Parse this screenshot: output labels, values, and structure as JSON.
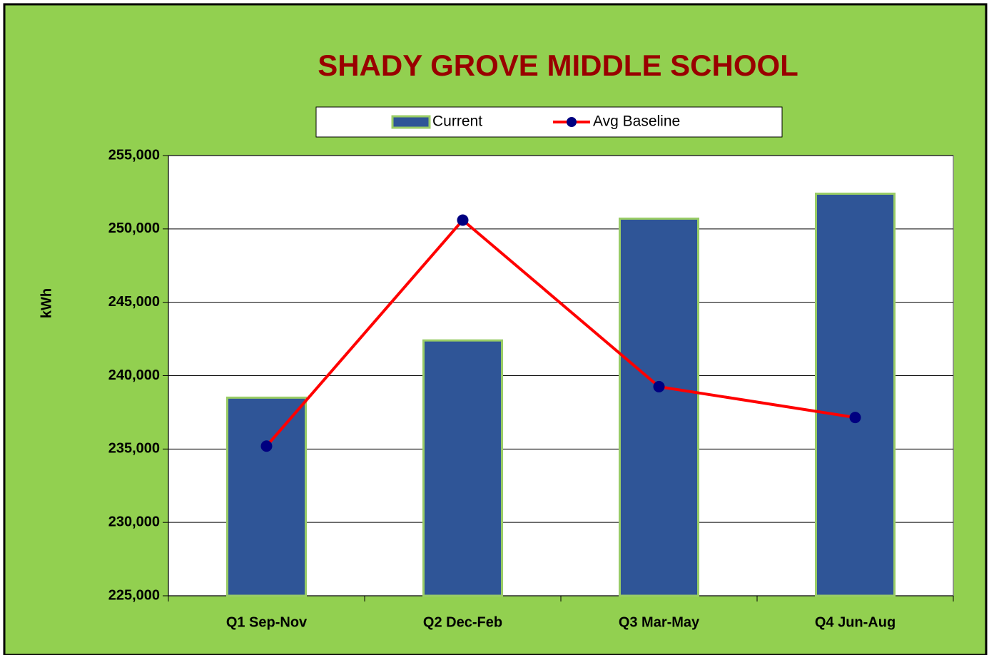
{
  "chart_data": {
    "type": "bar",
    "title": "SHADY GROVE MIDDLE SCHOOL",
    "y_label": "kWh",
    "categories": [
      "Q1 Sep-Nov",
      "Q2 Dec-Feb",
      "Q3 Mar-May",
      "Q4 Jun-Aug"
    ],
    "series": [
      {
        "name": "Current",
        "type": "bar",
        "color": "#2f5597",
        "values": [
          238500,
          242400,
          250700,
          252400
        ]
      },
      {
        "name": "Avg Baseline",
        "type": "line",
        "color": "#ff0000",
        "marker_color": "#000080",
        "values": [
          235200,
          250600,
          239250,
          237150
        ]
      }
    ],
    "ylim": [
      225000,
      255000
    ],
    "yticks": [
      {
        "value": 225000,
        "label": "225,000"
      },
      {
        "value": 230000,
        "label": "230,000"
      },
      {
        "value": 235000,
        "label": "235,000"
      },
      {
        "value": 240000,
        "label": "240,000"
      },
      {
        "value": 245000,
        "label": "245,000"
      },
      {
        "value": 250000,
        "label": "250,000"
      },
      {
        "value": 255000,
        "label": "255,000"
      }
    ],
    "grid": true,
    "legend": "top"
  }
}
